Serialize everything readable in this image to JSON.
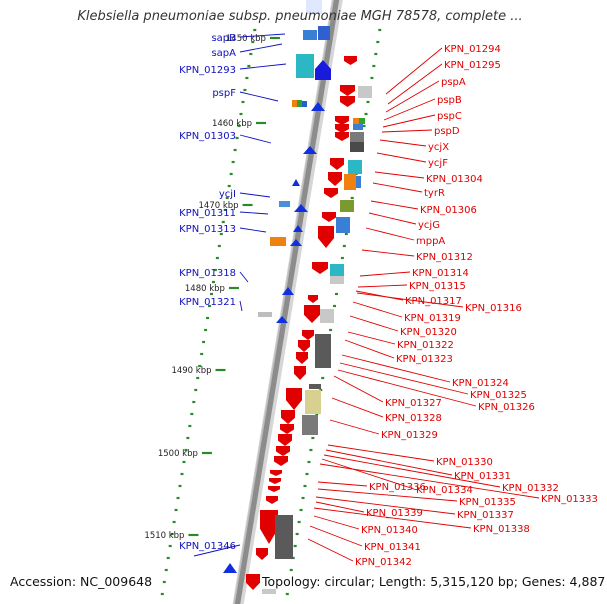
{
  "title": "Klebsiella pneumoniae subsp. pneumoniae MGH 78578, complete ...",
  "footer": {
    "accession": "Accession: NC_009648",
    "summary": "Topology: circular; Length: 5,315,120 bp; Genes: 4,887"
  },
  "colors": {
    "forward_label": "#1010c0",
    "reverse_label": "#e00000",
    "backbone": "#8c8c8c",
    "tick": "#2a8a2a",
    "scale_text": "#222222"
  },
  "scale_labels": [
    "1450 kbp",
    "1460 kbp",
    "1470 kbp",
    "1480 kbp",
    "1490 kbp",
    "1500 kbp",
    "1510 kbp"
  ],
  "left_genes": [
    "sapB",
    "sapA",
    "KPN_01293",
    "pspF",
    "KPN_01303",
    "ycjI",
    "KPN_01311",
    "KPN_01313",
    "KPN_01318",
    "KPN_01321",
    "KPN_01346"
  ],
  "right_genes": [
    "KPN_01294",
    "KPN_01295",
    "pspA",
    "pspB",
    "pspC",
    "pspD",
    "ycjX",
    "ycjF",
    "KPN_01304",
    "tyrR",
    "KPN_01306",
    "ycjG",
    "mppA",
    "KPN_01312",
    "KPN_01314",
    "KPN_01315",
    "KPN_01317",
    "KPN_01316",
    "KPN_01319",
    "KPN_01320",
    "KPN_01322",
    "KPN_01323",
    "KPN_01324",
    "KPN_01325",
    "KPN_01326",
    "KPN_01327",
    "KPN_01328",
    "KPN_01329",
    "KPN_01330",
    "KPN_01331",
    "KPN_01332",
    "KPN_01334",
    "KPN_01333",
    "KPN_01336",
    "KPN_01335",
    "KPN_01337",
    "KPN_01339",
    "KPN_01338",
    "KPN_01340",
    "KPN_01341",
    "KPN_01342"
  ]
}
